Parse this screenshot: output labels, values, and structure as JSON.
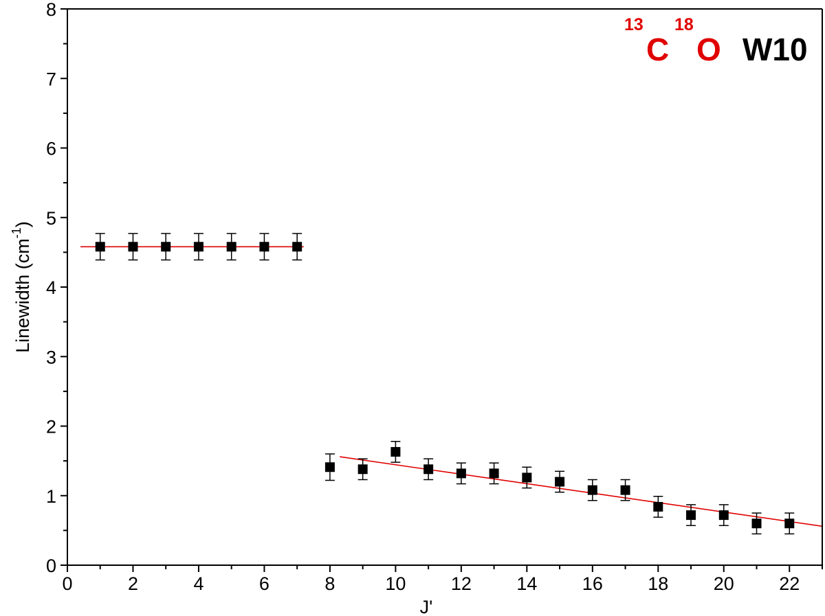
{
  "chart_data": {
    "type": "scatter",
    "xlabel": "J'",
    "ylabel": {
      "main": "Linewidth (cm",
      "sup": "-1",
      "close": ")"
    },
    "xlim": [
      0,
      23
    ],
    "ylim": [
      0,
      8
    ],
    "x_ticks": [
      "0",
      "2",
      "4",
      "6",
      "8",
      "10",
      "12",
      "14",
      "16",
      "18",
      "20",
      "22"
    ],
    "y_ticks": [
      "0",
      "1",
      "2",
      "3",
      "4",
      "5",
      "6",
      "7",
      "8"
    ],
    "grid": false,
    "annotation": {
      "sup1": "13",
      "atom1": "C",
      "sup2": "18",
      "atom2": "O",
      "label": "W10",
      "color_isotope": "#e00000",
      "color_label": "#000000"
    },
    "series": [
      {
        "marker": "square",
        "color": "#000000",
        "x": [
          1,
          2,
          3,
          4,
          5,
          6,
          7,
          8,
          9,
          10,
          11,
          12,
          13,
          14,
          15,
          16,
          17,
          18,
          19,
          20,
          21,
          22
        ],
        "y": [
          4.58,
          4.58,
          4.58,
          4.58,
          4.58,
          4.58,
          4.58,
          1.41,
          1.38,
          1.63,
          1.38,
          1.32,
          1.32,
          1.26,
          1.2,
          1.08,
          1.08,
          0.84,
          0.72,
          0.72,
          0.6,
          0.6
        ],
        "error": [
          0.19,
          0.19,
          0.19,
          0.19,
          0.19,
          0.19,
          0.19,
          0.19,
          0.15,
          0.15,
          0.15,
          0.15,
          0.15,
          0.15,
          0.15,
          0.15,
          0.15,
          0.15,
          0.15,
          0.15,
          0.15,
          0.15
        ]
      }
    ],
    "fit_lines": [
      {
        "color": "#e00000",
        "x": [
          0.4,
          7.2
        ],
        "y": [
          4.58,
          4.58
        ]
      },
      {
        "color": "#e00000",
        "x": [
          8.3,
          23
        ],
        "y": [
          1.56,
          0.56
        ]
      }
    ]
  }
}
